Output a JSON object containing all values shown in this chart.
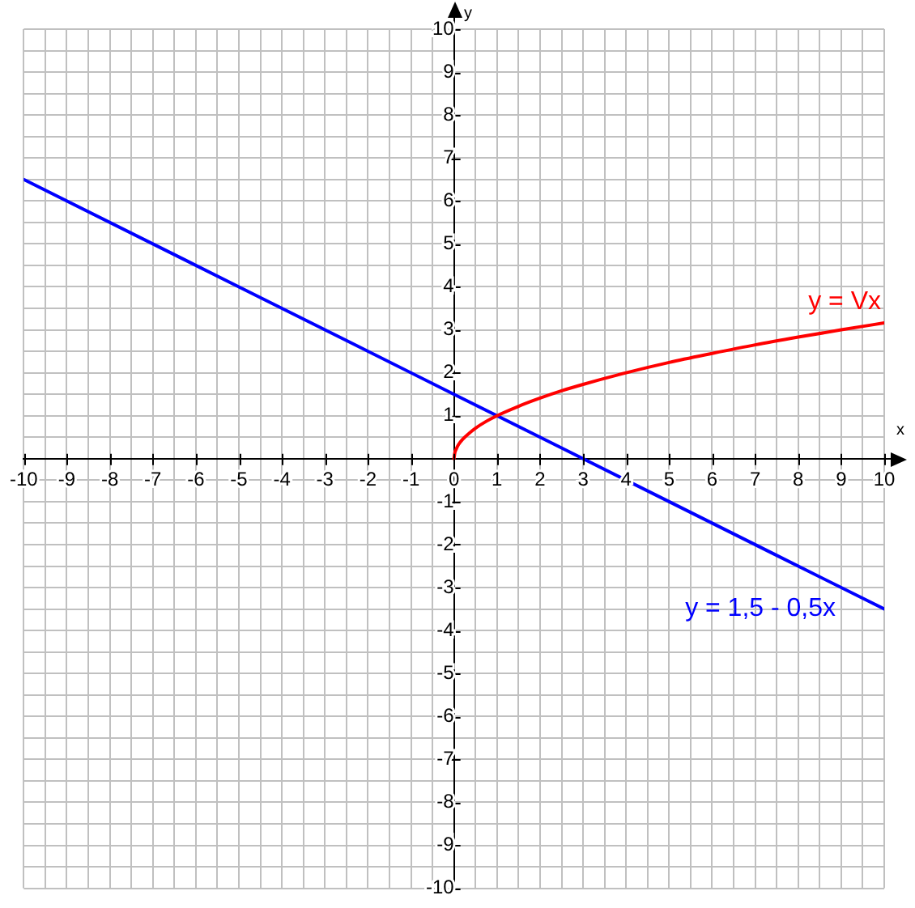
{
  "chart_data": {
    "type": "line",
    "xlabel": "x",
    "ylabel": "y",
    "xlim": [
      -10,
      10
    ],
    "ylim": [
      -10,
      10
    ],
    "xticks": [
      -10,
      {
        "value": -9.5,
        "label": null
      },
      -9,
      {
        "value": -8.5,
        "label": null
      },
      -8,
      {
        "value": -7.5,
        "label": null
      },
      -7,
      {
        "value": -6.5,
        "label": null
      },
      -6,
      {
        "value": -5.5,
        "label": null
      },
      -5,
      {
        "value": -4.5,
        "label": null
      },
      -4,
      {
        "value": -3.5,
        "label": null
      },
      -3,
      {
        "value": -2.5,
        "label": null
      },
      -2,
      {
        "value": -1.5,
        "label": null
      },
      -1,
      {
        "value": -0.5,
        "label": null
      },
      0,
      {
        "value": 0.5,
        "label": null
      },
      1,
      {
        "value": 1.5,
        "label": null
      },
      2,
      {
        "value": 2.5,
        "label": null
      },
      3,
      {
        "value": 3.5,
        "label": null
      },
      4,
      {
        "value": 4.5,
        "label": null
      },
      5,
      {
        "value": 5.5,
        "label": null
      },
      6,
      {
        "value": 6.5,
        "label": null
      },
      7,
      {
        "value": 7.5,
        "label": null
      },
      8,
      {
        "value": 8.5,
        "label": null
      },
      9,
      {
        "value": 9.5,
        "label": null
      },
      10
    ],
    "yticks": [
      -10,
      {
        "value": -9.5,
        "label": null
      },
      -9,
      {
        "value": -8.5,
        "label": null
      },
      -8,
      {
        "value": -7.5,
        "label": null
      },
      -7,
      {
        "value": -6.5,
        "label": null
      },
      -6,
      {
        "value": -5.5,
        "label": null
      },
      -5,
      {
        "value": -4.5,
        "label": null
      },
      -4,
      {
        "value": -3.5,
        "label": null
      },
      -3,
      {
        "value": -2.5,
        "label": null
      },
      -2,
      {
        "value": -1.5,
        "label": null
      },
      -1,
      {
        "value": -0.5,
        "label": null
      },
      {
        "value": 0,
        "label": null
      },
      {
        "value": 0.5,
        "label": null
      },
      1,
      {
        "value": 1.5,
        "label": null
      },
      2,
      {
        "value": 2.5,
        "label": null
      },
      3,
      {
        "value": 3.5,
        "label": null
      },
      4,
      {
        "value": 4.5,
        "label": null
      },
      5,
      {
        "value": 5.5,
        "label": null
      },
      6,
      {
        "value": 6.5,
        "label": null
      },
      7,
      {
        "value": 7.5,
        "label": null
      },
      8,
      {
        "value": 8.5,
        "label": null
      },
      9,
      {
        "value": 9.5,
        "label": null
      },
      10
    ],
    "series": [
      {
        "name": "y = Vx",
        "color": "#ff0000",
        "x": [
          0,
          0.02,
          0.05,
          0.1,
          0.2,
          0.35,
          0.5,
          0.75,
          1,
          1.5,
          2,
          2.5,
          3,
          4,
          5,
          6,
          7,
          8,
          9,
          10
        ],
        "values": [
          0,
          0.14,
          0.22,
          0.32,
          0.45,
          0.59,
          0.71,
          0.87,
          1,
          1.22,
          1.41,
          1.58,
          1.73,
          2,
          2.24,
          2.45,
          2.65,
          2.83,
          3,
          3.16
        ]
      },
      {
        "name": "y = 1,5 - 0,5x",
        "color": "#0000ff",
        "x": [
          -10,
          -5,
          0,
          5,
          10
        ],
        "values": [
          6.5,
          4,
          1.5,
          -1,
          -3.5
        ]
      }
    ],
    "grid": true,
    "legend": false,
    "marker": "none",
    "line_style": "solid"
  }
}
